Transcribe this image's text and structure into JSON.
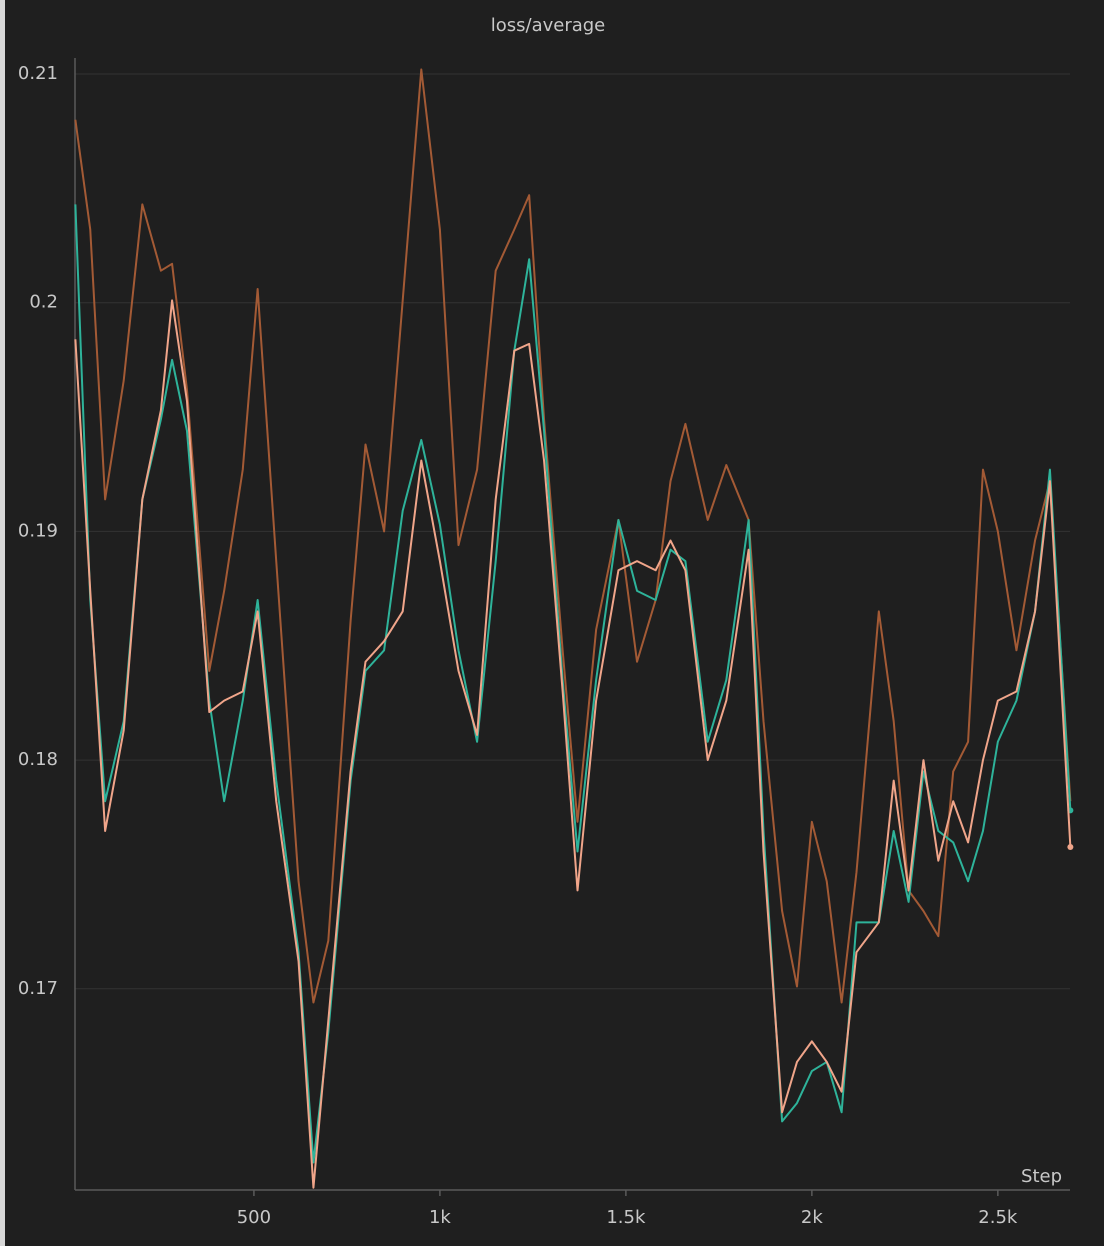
{
  "chart_data": {
    "type": "line",
    "title": "loss/average",
    "x_label": "Step",
    "x": [
      20,
      60,
      100,
      150,
      200,
      250,
      280,
      320,
      380,
      420,
      470,
      510,
      560,
      620,
      660,
      700,
      760,
      800,
      850,
      900,
      950,
      1000,
      1050,
      1100,
      1150,
      1200,
      1240,
      1280,
      1330,
      1370,
      1420,
      1480,
      1530,
      1580,
      1620,
      1660,
      1720,
      1770,
      1830,
      1870,
      1920,
      1960,
      2000,
      2040,
      2080,
      2120,
      2180,
      2220,
      2260,
      2300,
      2340,
      2380,
      2420,
      2460,
      2500,
      2550,
      2600,
      2640,
      2695
    ],
    "series": [
      {
        "color": "#a35a35",
        "values": [
          0.208,
          0.2032,
          0.1914,
          0.1966,
          0.2043,
          0.2014,
          0.2017,
          0.1962,
          0.1839,
          0.1874,
          0.1927,
          0.2006,
          0.1887,
          0.1747,
          0.1694,
          0.1721,
          0.1861,
          0.1938,
          0.19,
          0.2001,
          0.2102,
          0.2032,
          0.1894,
          0.1927,
          0.2014,
          0.2032,
          0.2047,
          0.1949,
          0.1848,
          0.1773,
          0.1857,
          0.1905,
          0.1843,
          0.187,
          0.1922,
          0.1947,
          0.1905,
          0.1929,
          0.1905,
          0.1817,
          0.1734,
          0.1701,
          0.1773,
          0.1747,
          0.1694,
          0.1751,
          0.1865,
          0.1817,
          0.1743,
          0.1734,
          0.1723,
          0.1795,
          0.1808,
          0.1927,
          0.19,
          0.1848,
          0.1896,
          0.1922,
          0.1782
        ]
      },
      {
        "color": "#2eb39a",
        "values": [
          0.2043,
          0.187,
          0.1782,
          0.1817,
          0.1914,
          0.1949,
          0.1975,
          0.1944,
          0.1826,
          0.1782,
          0.1826,
          0.187,
          0.1791,
          0.1716,
          0.1624,
          0.1681,
          0.1791,
          0.1839,
          0.1848,
          0.1909,
          0.194,
          0.1903,
          0.1848,
          0.1808,
          0.1887,
          0.1979,
          0.2019,
          0.1944,
          0.1835,
          0.176,
          0.1835,
          0.1905,
          0.1874,
          0.187,
          0.1892,
          0.1887,
          0.1808,
          0.1835,
          0.1905,
          0.1769,
          0.1642,
          0.165,
          0.1664,
          0.1668,
          0.1646,
          0.1729,
          0.1729,
          0.1769,
          0.1738,
          0.1795,
          0.1769,
          0.1764,
          0.1747,
          0.1769,
          0.1808,
          0.1826,
          0.1865,
          0.1927,
          0.1778
        ]
      },
      {
        "color": "#f0a58a",
        "values": [
          0.1984,
          0.1874,
          0.1769,
          0.1813,
          0.1914,
          0.1953,
          0.2001,
          0.1957,
          0.1821,
          0.1826,
          0.183,
          0.1865,
          0.1782,
          0.1712,
          0.1613,
          0.1686,
          0.1795,
          0.1843,
          0.1852,
          0.1865,
          0.1931,
          0.1887,
          0.1839,
          0.1811,
          0.1914,
          0.1979,
          0.1982,
          0.1931,
          0.183,
          0.1743,
          0.1826,
          0.1883,
          0.1887,
          0.1883,
          0.1896,
          0.1883,
          0.18,
          0.1826,
          0.1892,
          0.176,
          0.1646,
          0.1668,
          0.1677,
          0.1668,
          0.1655,
          0.1716,
          0.1729,
          0.1791,
          0.1743,
          0.18,
          0.1756,
          0.1782,
          0.1764,
          0.18,
          0.1826,
          0.183,
          0.1865,
          0.1922,
          0.1762
        ]
      }
    ],
    "xlim": [
      19,
      2694
    ],
    "xticks": [
      500,
      {
        "value": 1000,
        "label": "1k"
      },
      {
        "value": 1500,
        "label": "1.5k"
      },
      {
        "value": 2000,
        "label": "2k"
      },
      {
        "value": 2500,
        "label": "2.5k"
      }
    ],
    "ylim": [
      0.1612,
      0.2107
    ],
    "yticks": [
      0.17,
      0.18,
      0.19,
      0.2,
      0.21
    ],
    "grid": true
  }
}
